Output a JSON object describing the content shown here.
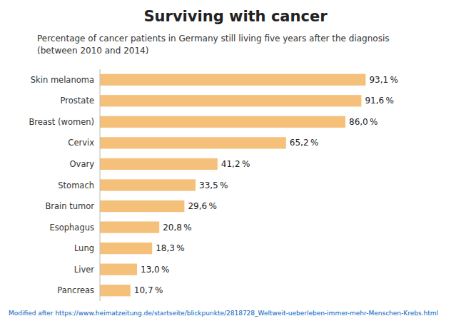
{
  "chart_data": {
    "type": "bar",
    "orientation": "horizontal",
    "title": "Surviving with cancer",
    "subtitle": "Percentage of cancer patients in Germany still living five years after the diagnosis\n(between 2010 and 2014)",
    "categories": [
      "Skin melanoma",
      "Prostate",
      "Breast (women)",
      "Cervix",
      "Ovary",
      "Stomach",
      "Brain tumor",
      "Esophagus",
      "Lung",
      "Liver",
      "Pancreas"
    ],
    "values": [
      93.1,
      91.6,
      86.0,
      65.2,
      41.2,
      33.5,
      29.6,
      20.8,
      18.3,
      13.0,
      10.7
    ],
    "value_labels": [
      "93,1 %",
      "91,6 %",
      "86,0 %",
      "65,2 %",
      "41,2 %",
      "33,5 %",
      "29,6 %",
      "20,8 %",
      "18,3 %",
      "13,0 %",
      "10,7 %"
    ],
    "color": "#F5C07A",
    "xlim": [
      0,
      105
    ],
    "data_labels": true,
    "tick_labels": "y",
    "grid": false,
    "annotations": [
      {
        "text": "Modified after https://www.heimatzeitung.de/startseite/blickpunkte/2818728_Weltweit-ueberleben-immer-mehr-Menschen-Krebs.html",
        "color": "#0563C1"
      }
    ]
  }
}
